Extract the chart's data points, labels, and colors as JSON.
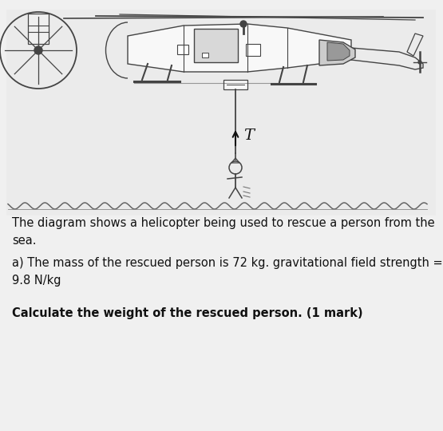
{
  "bg_color": "#f0f0f0",
  "fig_bg": "#f0f0f0",
  "diagram_bg": "#f5f5f5",
  "wave_color": "#555555",
  "rope_color": "#333333",
  "heli_color": "#444444",
  "text_color": "#111111",
  "text1": "The diagram shows a helicopter being used to rescue a person from the\nsea.",
  "text2": "a) The mass of the rescued person is 72 kg. gravitational field strength =\n9.8 N/kg",
  "text3": "Calculate the weight of the rescued person. (1 mark)",
  "fontsize_body": 10.5,
  "fontsize_bold": 10.5
}
